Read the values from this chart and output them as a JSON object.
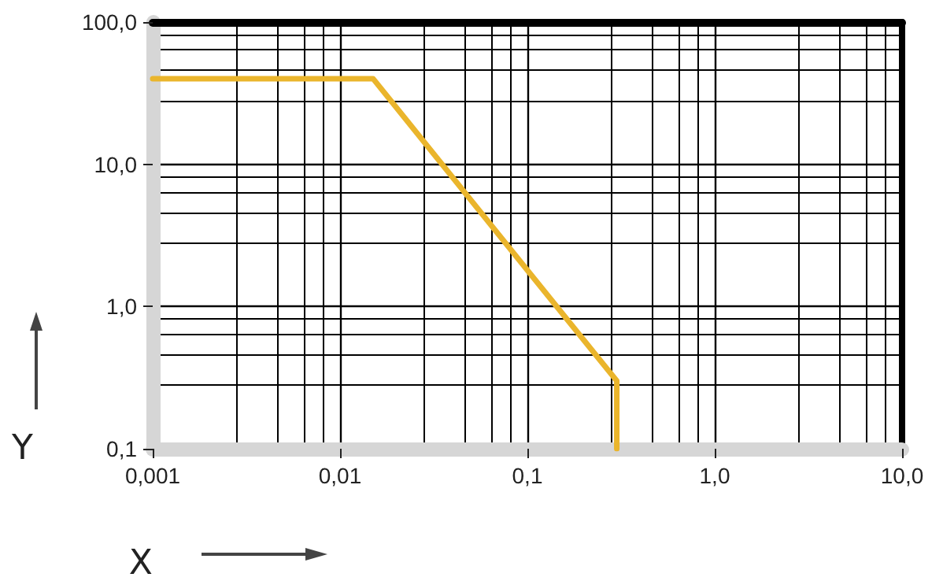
{
  "chart_data": {
    "type": "line",
    "xlabel": "X",
    "ylabel": "Y",
    "log": "xy",
    "grid": true,
    "marker": "none",
    "line_style": "solid",
    "xlim": [
      0.001,
      10
    ],
    "xticks": [
      {
        "value": 0.001,
        "label": "0,001"
      },
      {
        "value": 0.01,
        "label": "0,01"
      },
      {
        "value": 0.1,
        "label": "0,1"
      },
      {
        "value": 1,
        "label": "1,0"
      },
      {
        "value": 10,
        "label": "10,0"
      }
    ],
    "ylim": [
      0.1,
      100
    ],
    "yticks": [
      {
        "value": 0.1,
        "label": "0,1"
      },
      {
        "value": 1,
        "label": "1,0"
      },
      {
        "value": 10,
        "label": "10,0"
      },
      {
        "value": 100,
        "label": "100,0"
      }
    ],
    "series": [
      {
        "color": "#eab52c",
        "x": [
          0.001,
          0.015,
          0.1,
          0.3,
          0.3
        ],
        "values": [
          40,
          40,
          1.8,
          0.3,
          0.1
        ]
      }
    ]
  }
}
